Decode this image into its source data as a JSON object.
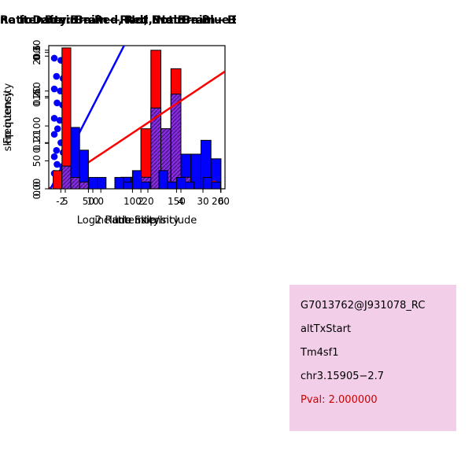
{
  "colors": {
    "red": "#FF0000",
    "blue": "#0000FF",
    "overlap_fill": "#8A2BE2",
    "overlap_hatch": "#3D1578",
    "axis": "#000000",
    "info_bg": "#F3CEE9",
    "pval_color": "#CC0000"
  },
  "chart_data": [
    {
      "type": "bar",
      "subtype": "overlaid-histograms",
      "title": "RatioData: Brain − Red, Not Brain − Blu",
      "title_anchor": "start",
      "xlabel": "Log2 Ratio Skip/Include",
      "ylabel": "Frequency",
      "xlim": [
        -2.6,
        6.2
      ],
      "ylim": [
        0,
        0.31
      ],
      "xticks": [
        -2,
        0,
        2,
        4,
        6
      ],
      "xtick_labels": [
        "-2",
        "0",
        "2",
        "4",
        "6"
      ],
      "yticks": [
        0,
        0.1,
        0.2,
        0.3
      ],
      "ytick_labels": [
        "0.00",
        "0.10",
        "0.20",
        "0.30"
      ],
      "bin_start": -2.5,
      "bin_width": 0.5,
      "series": [
        {
          "name": "Brain (red)",
          "values": [
            0,
            0.05,
            0,
            0,
            0,
            0,
            0,
            0,
            0,
            0.13,
            0.3,
            0.13,
            0.26,
            0.025,
            0,
            0,
            0
          ]
        },
        {
          "name": "Not Brain (blue)",
          "values": [
            0,
            0,
            0,
            0,
            0,
            0,
            0,
            0.025,
            0.025,
            0.025,
            0.175,
            0.13,
            0.205,
            0.075,
            0.075,
            0.105,
            0.065
          ]
        }
      ]
    },
    {
      "type": "scatter",
      "title": "Brain − Red, Not Brain − Blue",
      "title_anchor": "middle",
      "xlabel": "include intensity",
      "ylabel": "skip intensity",
      "xlim": [
        2,
        34
      ],
      "ylim": [
        10,
        215
      ],
      "xticks": [
        5,
        10,
        20,
        30
      ],
      "xtick_labels": [
        "5",
        "10",
        "20",
        "30"
      ],
      "yticks": [
        50,
        100,
        150,
        200
      ],
      "ytick_labels": [
        "50",
        "100",
        "150",
        "200"
      ],
      "blue_points": [
        [
          3,
          197
        ],
        [
          4.2,
          194
        ],
        [
          3.4,
          171
        ],
        [
          4.6,
          168
        ],
        [
          3,
          153
        ],
        [
          4.1,
          150
        ],
        [
          5,
          146
        ],
        [
          3.5,
          133
        ],
        [
          4.5,
          130
        ],
        [
          3,
          111
        ],
        [
          4,
          108
        ],
        [
          3.6,
          96
        ],
        [
          3,
          88
        ],
        [
          4.2,
          76
        ],
        [
          5,
          72
        ],
        [
          3.4,
          65
        ],
        [
          4.6,
          62
        ],
        [
          3,
          56
        ],
        [
          5.2,
          52
        ],
        [
          6,
          50
        ],
        [
          3.5,
          45
        ],
        [
          4.5,
          42
        ],
        [
          5.6,
          40
        ],
        [
          6.5,
          37
        ],
        [
          3,
          32
        ],
        [
          4,
          30
        ],
        [
          5,
          27
        ],
        [
          6,
          25
        ],
        [
          7,
          22
        ],
        [
          9,
          19
        ],
        [
          3.6,
          17
        ],
        [
          5.2,
          15
        ],
        [
          11,
          18
        ]
      ],
      "red_points": [
        [
          32,
          17
        ]
      ],
      "blue_line": [
        [
          2,
          5
        ],
        [
          16,
          220
        ]
      ],
      "red_line": [
        [
          2,
          10
        ],
        [
          34,
          178
        ]
      ]
    },
    {
      "type": "bar",
      "subtype": "overlaid-histograms",
      "title": "ne Itensity: Brain − Red, Not Brain − B",
      "title_anchor": "start",
      "xlabel": "Intensity",
      "ylabel": "Frequency",
      "xlim": [
        5,
        205
      ],
      "ylim": [
        0,
        0.63
      ],
      "xticks": [
        50,
        100,
        150,
        200
      ],
      "xtick_labels": [
        "50",
        "100",
        "150",
        "200"
      ],
      "yticks": [
        0,
        0.2,
        0.4,
        0.6
      ],
      "ytick_labels": [
        "0.0",
        "0.2",
        "0.4",
        "0.6"
      ],
      "bin_start": 10,
      "bin_width": 10,
      "series": [
        {
          "name": "Brain (red)",
          "values": [
            0.08,
            0.62,
            0.05,
            0.03,
            0,
            0,
            0,
            0,
            0,
            0,
            0,
            0,
            0,
            0,
            0,
            0,
            0,
            0,
            0
          ]
        },
        {
          "name": "Not Brain (blue)",
          "values": [
            0,
            0.1,
            0.27,
            0.17,
            0.05,
            0.05,
            0,
            0.05,
            0.03,
            0.08,
            0.03,
            0,
            0.08,
            0.03,
            0.05,
            0.03,
            0,
            0.05,
            0.03
          ]
        }
      ]
    }
  ],
  "info_box": {
    "lines": [
      "G7013762@J931078_RC",
      "altTxStart",
      "Tm4sf1",
      "chr3.15905−2.7"
    ],
    "pval": "Pval: 2.000000"
  }
}
